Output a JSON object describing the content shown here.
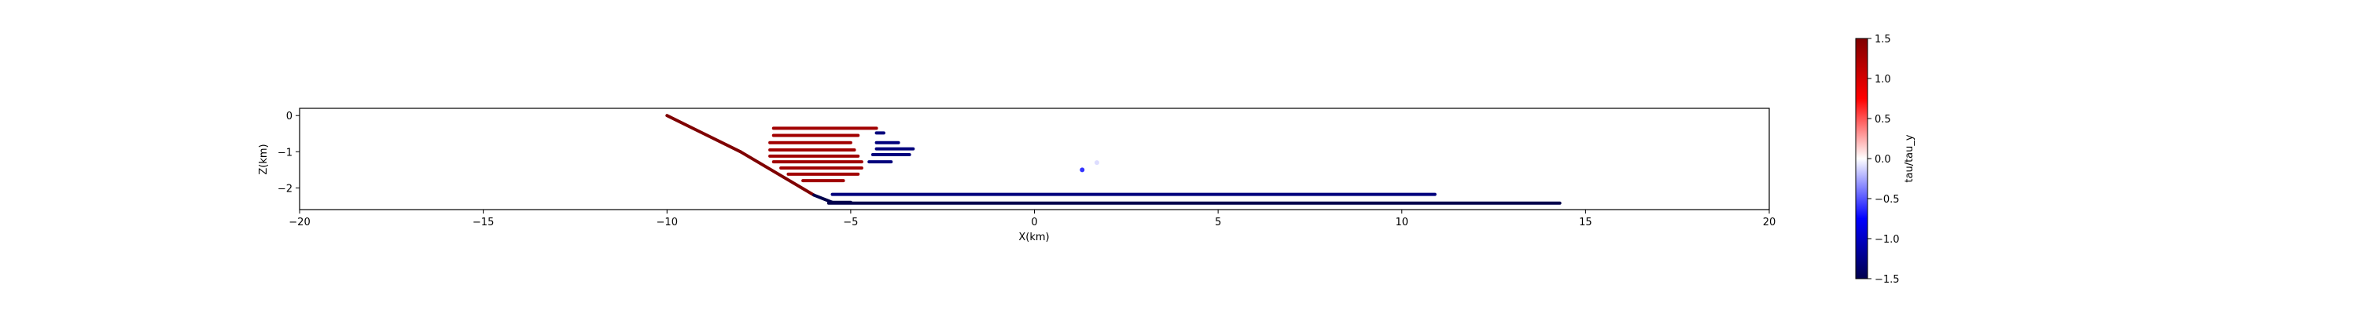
{
  "chart_data": {
    "type": "scatter",
    "xlabel": "X(km)",
    "ylabel": "Z(km)",
    "xlim": [
      -20,
      20
    ],
    "ylim": [
      -2.6,
      0.2
    ],
    "xticks": [
      -20,
      -15,
      -10,
      -5,
      0,
      5,
      10,
      15,
      20
    ],
    "yticks": [
      0,
      -1,
      -2
    ],
    "grid": false,
    "colormap": "seismic",
    "colorbar": {
      "label": "tau/tau_y",
      "vmin": -1.5,
      "vmax": 1.5,
      "ticks": [
        1.5,
        1.0,
        0.5,
        0.0,
        -0.5,
        -1.0,
        -1.5
      ]
    },
    "series": [
      {
        "kind": "curve",
        "points": [
          [
            -10,
            0.0
          ],
          [
            -8,
            -1.0
          ],
          [
            -6,
            -2.2
          ],
          [
            -5.5,
            -2.4
          ],
          [
            -5.0,
            -2.4
          ]
        ],
        "value_start": 1.5,
        "value_end": -1.5
      },
      {
        "kind": "segment",
        "x": [
          -5.5,
          10.9
        ],
        "z": -2.18,
        "value": -1.3
      },
      {
        "kind": "segment",
        "x": [
          -5.6,
          14.3
        ],
        "z": -2.42,
        "value": -1.5
      },
      {
        "kind": "segment",
        "x": [
          -7.1,
          -4.3
        ],
        "z": -0.35,
        "value": 1.3
      },
      {
        "kind": "segment",
        "x": [
          -7.1,
          -4.8
        ],
        "z": -0.55,
        "value": 1.3
      },
      {
        "kind": "segment",
        "x": [
          -7.2,
          -5.0
        ],
        "z": -0.75,
        "value": 1.3
      },
      {
        "kind": "segment",
        "x": [
          -7.2,
          -4.9
        ],
        "z": -0.95,
        "value": 1.3
      },
      {
        "kind": "segment",
        "x": [
          -7.2,
          -4.8
        ],
        "z": -1.12,
        "value": 1.3
      },
      {
        "kind": "segment",
        "x": [
          -7.1,
          -4.7
        ],
        "z": -1.28,
        "value": 1.3
      },
      {
        "kind": "segment",
        "x": [
          -6.9,
          -4.7
        ],
        "z": -1.45,
        "value": 1.3
      },
      {
        "kind": "segment",
        "x": [
          -6.7,
          -4.8
        ],
        "z": -1.62,
        "value": 1.3
      },
      {
        "kind": "segment",
        "x": [
          -6.3,
          -5.2
        ],
        "z": -1.8,
        "value": 1.3
      },
      {
        "kind": "segment",
        "x": [
          -4.3,
          -4.1
        ],
        "z": -0.48,
        "value": -1.3
      },
      {
        "kind": "segment",
        "x": [
          -4.3,
          -3.7
        ],
        "z": -0.75,
        "value": -1.3
      },
      {
        "kind": "segment",
        "x": [
          -4.3,
          -3.3
        ],
        "z": -0.92,
        "value": -1.3
      },
      {
        "kind": "segment",
        "x": [
          -4.4,
          -3.4
        ],
        "z": -1.08,
        "value": -1.3
      },
      {
        "kind": "segment",
        "x": [
          -4.5,
          -3.9
        ],
        "z": -1.28,
        "value": -1.3
      },
      {
        "kind": "point",
        "x": 1.3,
        "z": -1.5,
        "value": -0.6
      },
      {
        "kind": "point",
        "x": 1.7,
        "z": -1.3,
        "value": -0.1
      }
    ]
  }
}
